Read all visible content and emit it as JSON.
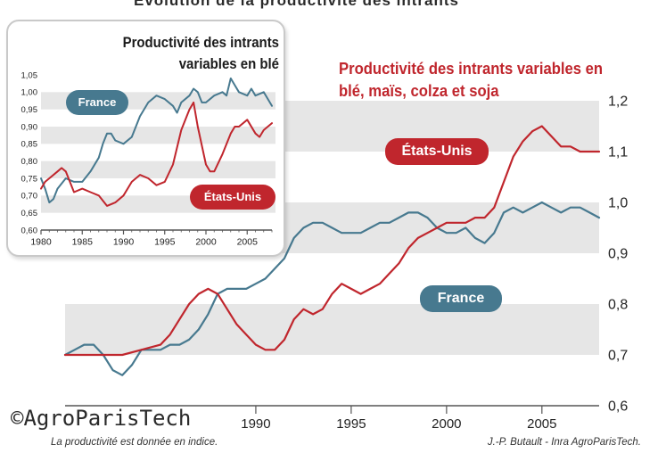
{
  "colors": {
    "france": "#47798f",
    "usa": "#c0262d",
    "band": "#e6e6e6",
    "axis": "#555555"
  },
  "chart_data": [
    {
      "type": "line",
      "title": "Productivité des intrants variables en blé, maïs, colza et soja",
      "ylim": [
        0.6,
        1.2
      ],
      "xlim": [
        1980,
        2008
      ],
      "x_ticks": [
        "1990",
        "1995",
        "2000",
        "2005"
      ],
      "y_ticks": [
        "0,6",
        "0,7",
        "0,8",
        "0,9",
        "1,0",
        "1,1",
        "1,2"
      ],
      "series": [
        {
          "name": "France",
          "points": [
            [
              1980,
              0.7
            ],
            [
              1980.5,
              0.71
            ],
            [
              1981,
              0.72
            ],
            [
              1981.5,
              0.72
            ],
            [
              1982,
              0.7
            ],
            [
              1982.5,
              0.67
            ],
            [
              1983,
              0.66
            ],
            [
              1983.5,
              0.68
            ],
            [
              1984,
              0.71
            ],
            [
              1984.5,
              0.71
            ],
            [
              1985,
              0.71
            ],
            [
              1985.5,
              0.72
            ],
            [
              1986,
              0.72
            ],
            [
              1986.5,
              0.73
            ],
            [
              1987,
              0.75
            ],
            [
              1987.5,
              0.78
            ],
            [
              1988,
              0.82
            ],
            [
              1988.5,
              0.83
            ],
            [
              1989,
              0.83
            ],
            [
              1989.5,
              0.83
            ],
            [
              1990,
              0.84
            ],
            [
              1990.5,
              0.85
            ],
            [
              1991,
              0.87
            ],
            [
              1991.5,
              0.89
            ],
            [
              1992,
              0.93
            ],
            [
              1992.5,
              0.95
            ],
            [
              1993,
              0.96
            ],
            [
              1993.5,
              0.96
            ],
            [
              1994,
              0.95
            ],
            [
              1994.5,
              0.94
            ],
            [
              1995,
              0.94
            ],
            [
              1995.5,
              0.94
            ],
            [
              1996,
              0.95
            ],
            [
              1996.5,
              0.96
            ],
            [
              1997,
              0.96
            ],
            [
              1997.5,
              0.97
            ],
            [
              1998,
              0.98
            ],
            [
              1998.5,
              0.98
            ],
            [
              1999,
              0.97
            ],
            [
              1999.5,
              0.95
            ],
            [
              2000,
              0.94
            ],
            [
              2000.5,
              0.94
            ],
            [
              2001,
              0.95
            ],
            [
              2001.5,
              0.93
            ],
            [
              2002,
              0.92
            ],
            [
              2002.5,
              0.94
            ],
            [
              2003,
              0.98
            ],
            [
              2003.5,
              0.99
            ],
            [
              2004,
              0.98
            ],
            [
              2004.5,
              0.99
            ],
            [
              2005,
              1.0
            ],
            [
              2005.5,
              0.99
            ],
            [
              2006,
              0.98
            ],
            [
              2006.5,
              0.99
            ],
            [
              2007,
              0.99
            ],
            [
              2007.5,
              0.98
            ],
            [
              2008,
              0.97
            ]
          ]
        },
        {
          "name": "États-Unis",
          "points": [
            [
              1980,
              0.7
            ],
            [
              1981,
              0.7
            ],
            [
              1982,
              0.7
            ],
            [
              1983,
              0.7
            ],
            [
              1984,
              0.71
            ],
            [
              1985,
              0.72
            ],
            [
              1985.5,
              0.74
            ],
            [
              1986,
              0.77
            ],
            [
              1986.5,
              0.8
            ],
            [
              1987,
              0.82
            ],
            [
              1987.5,
              0.83
            ],
            [
              1988,
              0.82
            ],
            [
              1988.5,
              0.79
            ],
            [
              1989,
              0.76
            ],
            [
              1989.5,
              0.74
            ],
            [
              1990,
              0.72
            ],
            [
              1990.5,
              0.71
            ],
            [
              1991,
              0.71
            ],
            [
              1991.5,
              0.73
            ],
            [
              1992,
              0.77
            ],
            [
              1992.5,
              0.79
            ],
            [
              1993,
              0.78
            ],
            [
              1993.5,
              0.79
            ],
            [
              1994,
              0.82
            ],
            [
              1994.5,
              0.84
            ],
            [
              1995,
              0.83
            ],
            [
              1995.5,
              0.82
            ],
            [
              1996,
              0.83
            ],
            [
              1996.5,
              0.84
            ],
            [
              1997,
              0.86
            ],
            [
              1997.5,
              0.88
            ],
            [
              1998,
              0.91
            ],
            [
              1998.5,
              0.93
            ],
            [
              1999,
              0.94
            ],
            [
              1999.5,
              0.95
            ],
            [
              2000,
              0.96
            ],
            [
              2000.5,
              0.96
            ],
            [
              2001,
              0.96
            ],
            [
              2001.5,
              0.97
            ],
            [
              2002,
              0.97
            ],
            [
              2002.5,
              0.99
            ],
            [
              2003,
              1.04
            ],
            [
              2003.5,
              1.09
            ],
            [
              2004,
              1.12
            ],
            [
              2004.5,
              1.14
            ],
            [
              2005,
              1.15
            ],
            [
              2005.5,
              1.13
            ],
            [
              2006,
              1.11
            ],
            [
              2006.5,
              1.11
            ],
            [
              2007,
              1.1
            ],
            [
              2007.5,
              1.1
            ],
            [
              2008,
              1.1
            ]
          ]
        }
      ],
      "series_labels": {
        "france": "France",
        "usa": "États-Unis"
      },
      "grid": "alternating horizontal bands",
      "footnote": "La productivité est donnée en indice.",
      "source": "J.-P. Butault - Inra AgroParisTech."
    },
    {
      "type": "line",
      "title": "Productivité des intrants variables en blé",
      "ylim": [
        0.6,
        1.05
      ],
      "xlim": [
        1980,
        2008
      ],
      "x_ticks": [
        "1980",
        "1985",
        "1990",
        "1995",
        "2000",
        "2005"
      ],
      "y_ticks": [
        "0,60",
        "0,65",
        "0,70",
        "0,75",
        "0,80",
        "0,85",
        "0,90",
        "0,95",
        "1,00",
        "1,05"
      ],
      "series": [
        {
          "name": "France",
          "points": [
            [
              1980,
              0.75
            ],
            [
              1980.5,
              0.72
            ],
            [
              1981,
              0.68
            ],
            [
              1981.5,
              0.69
            ],
            [
              1982,
              0.72
            ],
            [
              1983,
              0.75
            ],
            [
              1984,
              0.74
            ],
            [
              1985,
              0.74
            ],
            [
              1986,
              0.77
            ],
            [
              1987,
              0.81
            ],
            [
              1987.5,
              0.85
            ],
            [
              1988,
              0.88
            ],
            [
              1988.5,
              0.88
            ],
            [
              1989,
              0.86
            ],
            [
              1990,
              0.85
            ],
            [
              1991,
              0.87
            ],
            [
              1992,
              0.93
            ],
            [
              1993,
              0.97
            ],
            [
              1994,
              0.99
            ],
            [
              1995,
              0.98
            ],
            [
              1996,
              0.96
            ],
            [
              1996.5,
              0.94
            ],
            [
              1997,
              0.97
            ],
            [
              1998,
              0.99
            ],
            [
              1998.5,
              1.01
            ],
            [
              1999,
              1.0
            ],
            [
              1999.5,
              0.97
            ],
            [
              2000,
              0.97
            ],
            [
              2001,
              0.99
            ],
            [
              2002,
              1.0
            ],
            [
              2002.5,
              0.99
            ],
            [
              2003,
              1.04
            ],
            [
              2003.5,
              1.02
            ],
            [
              2004,
              1.0
            ],
            [
              2005,
              0.99
            ],
            [
              2005.5,
              1.01
            ],
            [
              2006,
              0.99
            ],
            [
              2007,
              1.0
            ],
            [
              2008,
              0.96
            ]
          ]
        },
        {
          "name": "États-Unis",
          "points": [
            [
              1980,
              0.72
            ],
            [
              1980.5,
              0.74
            ],
            [
              1981,
              0.75
            ],
            [
              1982,
              0.77
            ],
            [
              1982.5,
              0.78
            ],
            [
              1983,
              0.77
            ],
            [
              1983.5,
              0.74
            ],
            [
              1984,
              0.71
            ],
            [
              1985,
              0.72
            ],
            [
              1986,
              0.71
            ],
            [
              1987,
              0.7
            ],
            [
              1988,
              0.67
            ],
            [
              1989,
              0.68
            ],
            [
              1990,
              0.7
            ],
            [
              1991,
              0.74
            ],
            [
              1992,
              0.76
            ],
            [
              1993,
              0.75
            ],
            [
              1994,
              0.73
            ],
            [
              1995,
              0.74
            ],
            [
              1996,
              0.79
            ],
            [
              1997,
              0.89
            ],
            [
              1998,
              0.95
            ],
            [
              1998.5,
              0.97
            ],
            [
              1999,
              0.9
            ],
            [
              2000,
              0.79
            ],
            [
              2000.5,
              0.77
            ],
            [
              2001,
              0.77
            ],
            [
              2002,
              0.82
            ],
            [
              2003,
              0.88
            ],
            [
              2003.5,
              0.9
            ],
            [
              2004,
              0.9
            ],
            [
              2005,
              0.92
            ],
            [
              2006,
              0.88
            ],
            [
              2006.5,
              0.87
            ],
            [
              2007,
              0.89
            ],
            [
              2008,
              0.91
            ]
          ]
        }
      ],
      "series_labels": {
        "france": "France",
        "usa": "États-Unis"
      },
      "grid": "alternating horizontal bands"
    }
  ],
  "page": {
    "cut_title": "Évolution de la productivité des intrants",
    "copyright": "©AgroParisTech"
  }
}
